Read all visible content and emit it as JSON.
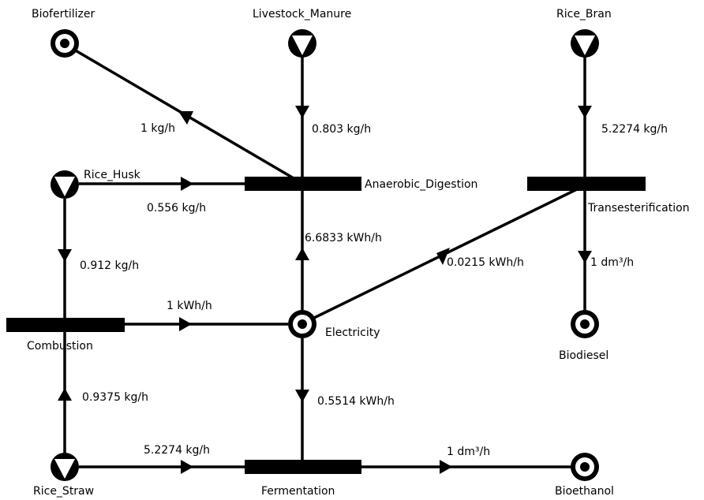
{
  "nodes": {
    "biofertilizer": {
      "label": "Biofertilizer",
      "kind": "product"
    },
    "livestock_manure": {
      "label": "Livestock_Manure",
      "kind": "raw_material"
    },
    "rice_bran": {
      "label": "Rice_Bran",
      "kind": "raw_material"
    },
    "rice_husk": {
      "label": "Rice_Husk",
      "kind": "raw_material"
    },
    "anaerobic_digestion": {
      "label": "Anaerobic_Digestion",
      "kind": "operating_unit"
    },
    "transesterification": {
      "label": "Transesterification",
      "kind": "operating_unit"
    },
    "combustion": {
      "label": "Combustion",
      "kind": "operating_unit"
    },
    "electricity": {
      "label": "Electricity",
      "kind": "intermediate"
    },
    "biodiesel": {
      "label": "Biodiesel",
      "kind": "product"
    },
    "rice_straw": {
      "label": "Rice_Straw",
      "kind": "raw_material"
    },
    "fermentation": {
      "label": "Fermentation",
      "kind": "operating_unit"
    },
    "bioethanol": {
      "label": "Bioethanol",
      "kind": "product"
    }
  },
  "edges": [
    {
      "id": "ad-biofertilizer",
      "from": "anaerobic_digestion",
      "to": "biofertilizer",
      "label": "1 kg/h"
    },
    {
      "id": "manure-ad",
      "from": "livestock_manure",
      "to": "anaerobic_digestion",
      "label": "0.803 kg/h"
    },
    {
      "id": "bran-trans",
      "from": "rice_bran",
      "to": "transesterification",
      "label": "5.2274 kg/h"
    },
    {
      "id": "husk-ad",
      "from": "rice_husk",
      "to": "anaerobic_digestion",
      "label": "0.556 kg/h"
    },
    {
      "id": "elec-ad",
      "from": "electricity",
      "to": "anaerobic_digestion",
      "label": "6.6833 kWh/h"
    },
    {
      "id": "elec-trans",
      "from": "electricity",
      "to": "transesterification",
      "label": "0.0215 kWh/h"
    },
    {
      "id": "trans-biodiesel",
      "from": "transesterification",
      "to": "biodiesel",
      "label": "1 dm³/h"
    },
    {
      "id": "husk-comb",
      "from": "rice_husk",
      "to": "combustion",
      "label": "0.912 kg/h"
    },
    {
      "id": "comb-elec",
      "from": "combustion",
      "to": "electricity",
      "label": "1 kWh/h"
    },
    {
      "id": "straw-comb",
      "from": "rice_straw",
      "to": "combustion",
      "label": "0.9375 kg/h"
    },
    {
      "id": "elec-ferm",
      "from": "electricity",
      "to": "fermentation",
      "label": "0.5514 kWh/h"
    },
    {
      "id": "straw-ferm",
      "from": "rice_straw",
      "to": "fermentation",
      "label": "5.2274 kg/h"
    },
    {
      "id": "ferm-bioethanol",
      "from": "fermentation",
      "to": "bioethanol",
      "label": "1 dm³/h"
    }
  ]
}
